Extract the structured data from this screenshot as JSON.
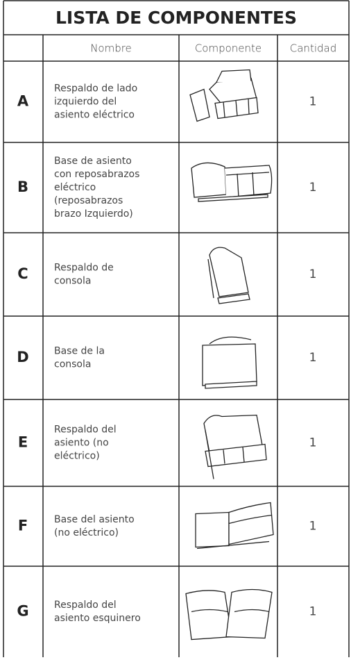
{
  "table": {
    "title": "LISTA DE COMPONENTES",
    "headers": [
      "Nombre",
      "Componente",
      "Cantidad"
    ],
    "rows": [
      {
        "letter": "A",
        "name": [
          "Respaldo de lado",
          "izquierdo del",
          "asiento eléctrico"
        ],
        "quantity": 1
      },
      {
        "letter": "B",
        "name": [
          "Base de asiento",
          "con reposabrazos",
          "eléctrico",
          "(reposabrazos",
          "brazo Izquierdo)"
        ],
        "quantity": 1
      },
      {
        "letter": "C",
        "name": [
          "Respaldo de",
          "consola"
        ],
        "quantity": 1
      },
      {
        "letter": "D",
        "name": [
          "Base de la",
          "consola"
        ],
        "quantity": 1
      },
      {
        "letter": "E",
        "name": [
          "Respaldo del",
          "asiento (no",
          "eléctrico)"
        ],
        "quantity": 1
      },
      {
        "letter": "F",
        "name": [
          "Base del asiento",
          "(no eléctrico)"
        ],
        "quantity": 1
      },
      {
        "letter": "G",
        "name": [
          "Respaldo del",
          "asiento esquinero"
        ],
        "quantity": 1
      }
    ]
  }
}
